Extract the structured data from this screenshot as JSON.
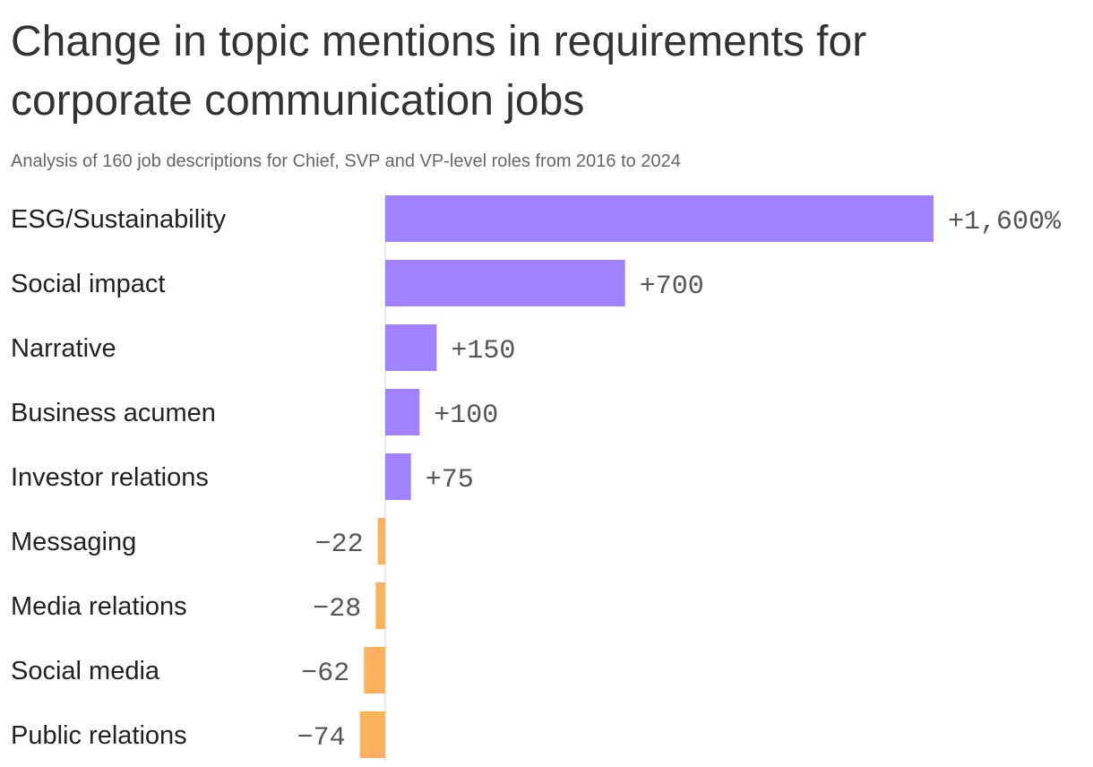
{
  "header": {
    "title": "Change in topic mentions in requirements for corporate communication jobs",
    "subtitle": "Analysis of 160 job descriptions for Chief, SVP and VP-level roles from 2016 to 2024"
  },
  "colors": {
    "positive": "#a182ff",
    "negative": "#ffb25e",
    "axis": "#d9d9d9"
  },
  "chart_data": {
    "type": "bar",
    "orientation": "horizontal",
    "title": "Change in topic mentions in requirements for corporate communication jobs",
    "subtitle": "Analysis of 160 job descriptions for Chief, SVP and VP-level roles from 2016 to 2024",
    "unit": "%",
    "categories": [
      "ESG/Sustainability",
      "Social impact",
      "Narrative",
      "Business acumen",
      "Investor relations",
      "Messaging",
      "Media relations",
      "Social media",
      "Public relations"
    ],
    "values": [
      1600,
      700,
      150,
      100,
      75,
      -22,
      -28,
      -62,
      -74
    ],
    "value_labels": [
      "+1,600%",
      "+700",
      "+150",
      "+100",
      "+75",
      "−22",
      "−28",
      "−62",
      "−74"
    ],
    "xlim": [
      -74,
      1600
    ],
    "grid": false,
    "legend": "none"
  }
}
